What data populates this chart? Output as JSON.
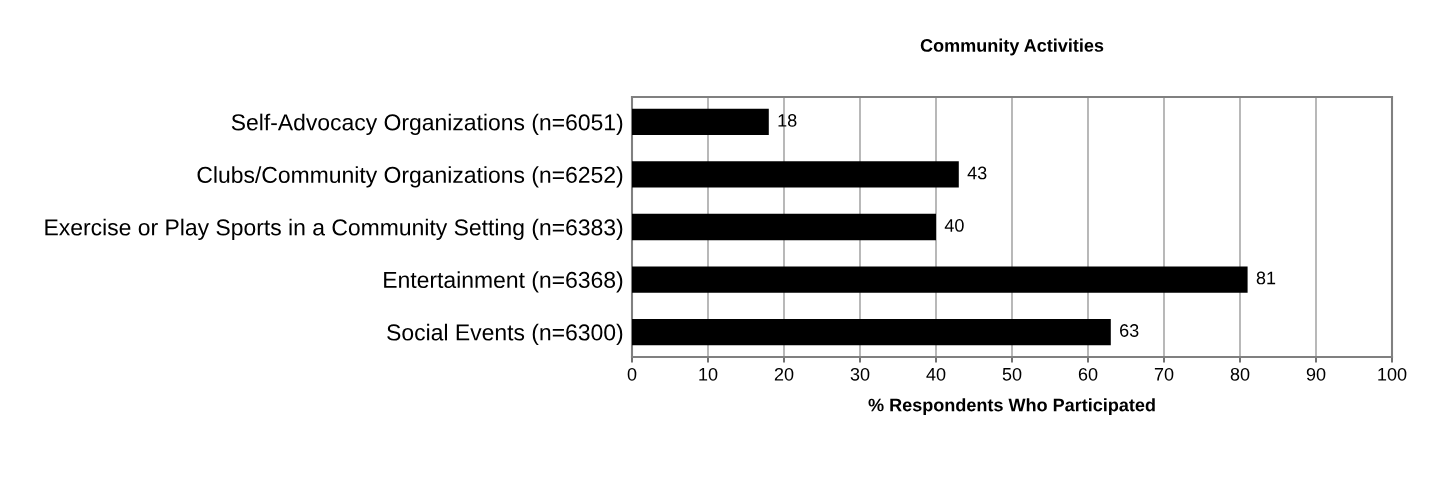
{
  "chart_data": {
    "type": "bar",
    "orientation": "horizontal",
    "title": "Community Activities",
    "xlabel": "% Respondents Who Participated",
    "categories": [
      "Self-Advocacy Organizations (n=6051)",
      "Clubs/Community Organizations (n=6252)",
      "Exercise or Play Sports in a Community Setting (n=6383)",
      "Entertainment (n=6368)",
      "Social Events (n=6300)"
    ],
    "values": [
      18,
      43,
      40,
      81,
      63
    ],
    "color": "#000000",
    "xlim": [
      0,
      100
    ],
    "xticks": [
      0,
      10,
      20,
      30,
      40,
      50,
      60,
      70,
      80,
      90,
      100
    ],
    "grid": "x",
    "data_labels": true,
    "legend": false
  }
}
